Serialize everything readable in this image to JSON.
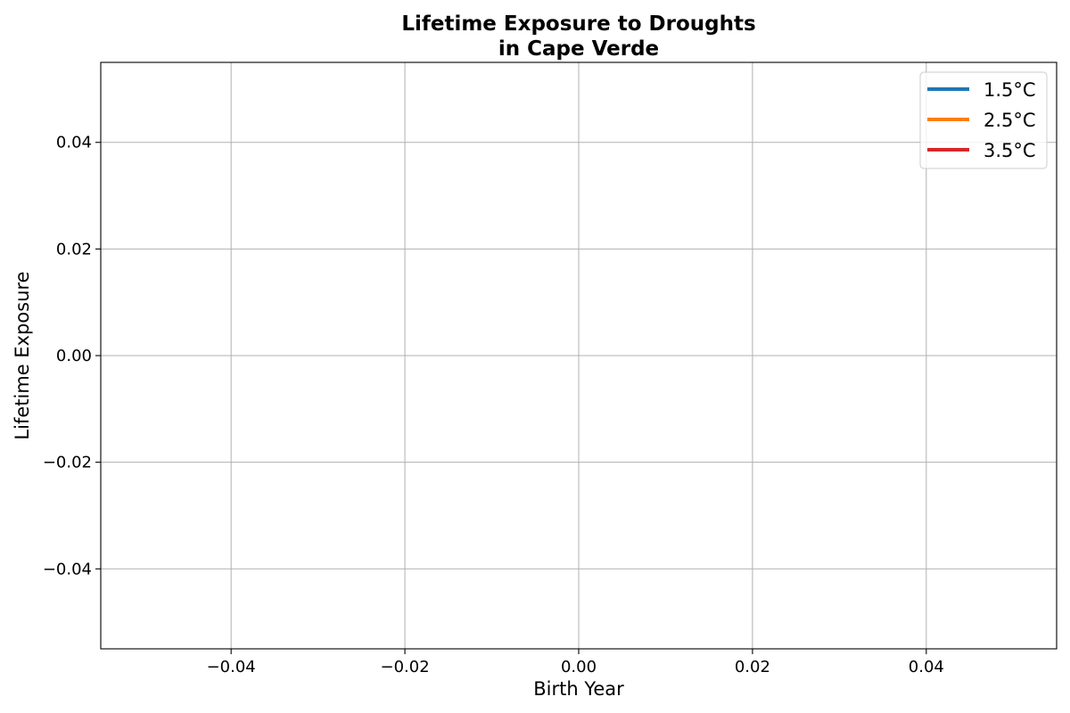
{
  "chart_data": {
    "type": "line",
    "title_line1": "Lifetime Exposure to Droughts",
    "title_line2": "in Cape Verde",
    "xlabel": "Birth Year",
    "ylabel": "Lifetime Exposure",
    "xlim": [
      -0.055,
      0.055
    ],
    "ylim": [
      -0.055,
      0.055
    ],
    "xticks": [
      -0.04,
      -0.02,
      0.0,
      0.02,
      0.04
    ],
    "yticks": [
      -0.04,
      -0.02,
      0.0,
      0.02,
      0.04
    ],
    "xtick_labels": [
      "−0.04",
      "−0.02",
      "0.00",
      "0.02",
      "0.04"
    ],
    "ytick_labels": [
      "−0.04",
      "−0.02",
      "0.00",
      "0.02",
      "0.04"
    ],
    "grid": true,
    "legend_position": "top-right",
    "series": [
      {
        "name": "1.5°C",
        "color": "#1f77b4",
        "x": [],
        "y": []
      },
      {
        "name": "2.5°C",
        "color": "#ff7f0e",
        "x": [],
        "y": []
      },
      {
        "name": "3.5°C",
        "color": "#d62728",
        "x": [],
        "y": []
      }
    ]
  }
}
